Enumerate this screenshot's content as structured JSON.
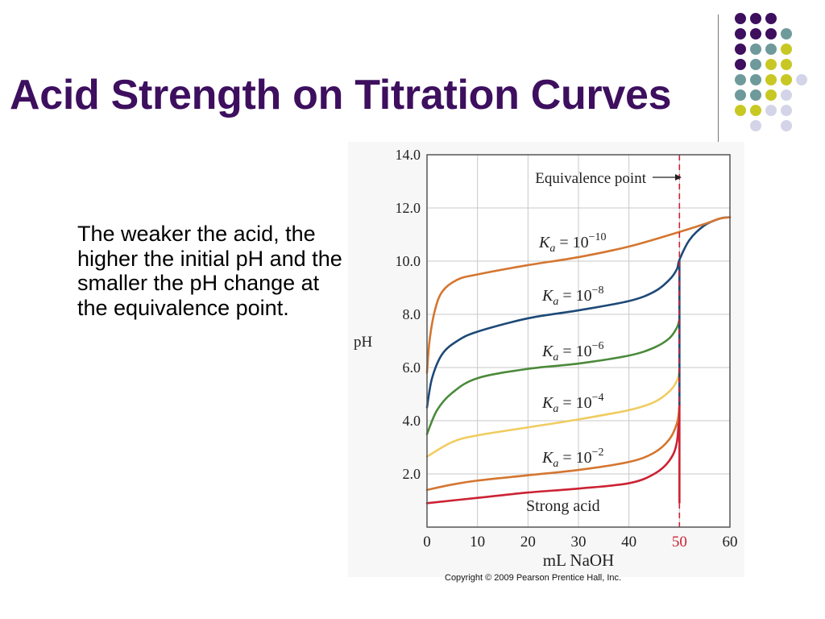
{
  "slide": {
    "title": "Acid Strength on Titration Curves",
    "body": "The weaker the acid, the higher the initial pH and the smaller the pH change at the equivalence point.",
    "copyright": "Copyright © 2009 Pearson Prentice Hall, Inc.",
    "colors": {
      "title": "#3d0f5e",
      "dot_purple": "#3d0f5e",
      "dot_teal": "#6f9a9b",
      "dot_lime": "#c8c824",
      "dot_lavender": "#d4d4e8"
    }
  },
  "chart_data": {
    "type": "line",
    "xlabel": "mL NaOH",
    "ylabel": "pH",
    "xlim": [
      0,
      60
    ],
    "ylim": [
      0,
      14
    ],
    "x_ticks": [
      "0",
      "10",
      "20",
      "30",
      "40",
      "50",
      "60"
    ],
    "y_ticks": [
      "2.0",
      "4.0",
      "6.0",
      "8.0",
      "10.0",
      "12.0",
      "14.0"
    ],
    "grid": true,
    "equivalence_point": {
      "label": "Equivalence point",
      "x": 50,
      "tick_label": "50",
      "color": "#cc2233"
    },
    "series": [
      {
        "name": "Strong acid",
        "color": "#cc2233",
        "x": [
          0,
          10,
          20,
          30,
          40,
          45,
          48,
          49.5,
          50
        ],
        "y": [
          0.9,
          1.1,
          1.3,
          1.45,
          1.65,
          2.0,
          2.5,
          3.2,
          4.6
        ]
      },
      {
        "name_base": "K",
        "name_sub": "a",
        "name_rest": " = 10",
        "name_exp": "−2",
        "color": "#d47630",
        "x": [
          0,
          5,
          10,
          20,
          30,
          40,
          45,
          48,
          49.5,
          50
        ],
        "y": [
          1.4,
          1.6,
          1.75,
          1.95,
          2.15,
          2.45,
          2.8,
          3.3,
          3.9,
          4.5
        ]
      },
      {
        "name_base": "K",
        "name_sub": "a",
        "name_rest": " = 10",
        "name_exp": "−4",
        "color": "#f0cc60",
        "x": [
          0,
          5,
          10,
          20,
          30,
          40,
          45,
          48,
          49.5,
          50
        ],
        "y": [
          2.65,
          3.2,
          3.45,
          3.75,
          4.05,
          4.4,
          4.7,
          5.1,
          5.5,
          5.9
        ]
      },
      {
        "name_base": "K",
        "name_sub": "a",
        "name_rest": " = 10",
        "name_exp": "−6",
        "color": "#4a8a3a",
        "x": [
          0,
          2,
          5,
          10,
          20,
          30,
          40,
          45,
          48,
          49.5,
          50
        ],
        "y": [
          3.5,
          4.4,
          5.05,
          5.6,
          5.95,
          6.15,
          6.45,
          6.75,
          7.1,
          7.5,
          7.8
        ]
      },
      {
        "name_base": "K",
        "name_sub": "a",
        "name_rest": " = 10",
        "name_exp": "−8",
        "color": "#1d4978",
        "x": [
          0,
          1,
          3,
          6,
          10,
          20,
          30,
          40,
          45,
          48,
          49.5,
          50,
          52,
          55,
          58,
          60
        ],
        "y": [
          4.5,
          5.6,
          6.5,
          7.0,
          7.35,
          7.85,
          8.15,
          8.5,
          8.85,
          9.3,
          9.7,
          10.05,
          10.8,
          11.35,
          11.6,
          11.65
        ]
      },
      {
        "name_base": "K",
        "name_sub": "a",
        "name_rest": " = 10",
        "name_exp": "−10",
        "color": "#d47630",
        "x": [
          0,
          0.5,
          1.5,
          3,
          6,
          10,
          20,
          30,
          40,
          50,
          55,
          58,
          60
        ],
        "y": [
          5.8,
          7.0,
          8.1,
          8.85,
          9.3,
          9.5,
          9.85,
          10.15,
          10.55,
          11.1,
          11.4,
          11.6,
          11.65
        ]
      }
    ]
  }
}
